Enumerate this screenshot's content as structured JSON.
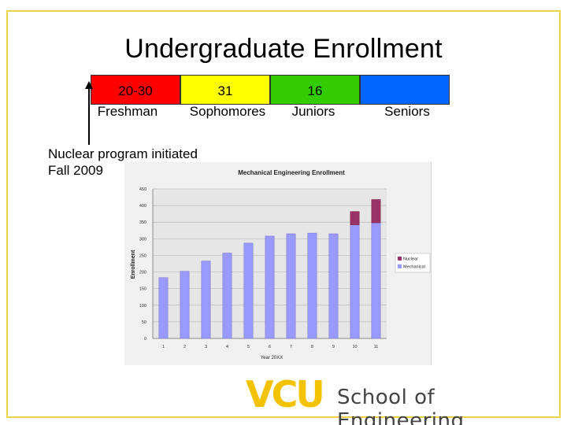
{
  "slide": {
    "title": "Undergraduate Enrollment",
    "note": [
      "Nuclear program initiated",
      "Fall 2009"
    ]
  },
  "class_bar": [
    {
      "value": "20-30",
      "label": "Freshman",
      "color": "#ff0000"
    },
    {
      "value": "31",
      "label": "Sophomores",
      "color": "#ffff00"
    },
    {
      "value": "16",
      "label": "Juniors",
      "color": "#33cc00"
    },
    {
      "value": "",
      "label": "Seniors",
      "color": "#0066ff"
    }
  ],
  "logo": {
    "brand": "VCU",
    "school": "School of Engineering",
    "brand_color": "#f3c200"
  },
  "chart_data": {
    "type": "bar",
    "stacked": true,
    "title": "Mechanical Engineering Enrollment",
    "xlabel": "Year 20XX",
    "ylabel": "Enrollment",
    "categories": [
      "1",
      "2",
      "3",
      "4",
      "5",
      "6",
      "7",
      "8",
      "9",
      "10",
      "11"
    ],
    "ylim": [
      0,
      450
    ],
    "yticks": [
      0,
      50,
      100,
      150,
      200,
      250,
      300,
      350,
      400,
      450
    ],
    "grid": true,
    "legend": "right",
    "series": [
      {
        "name": "Mechanical",
        "color": "#9999ff",
        "values": [
          183,
          202,
          233,
          257,
          287,
          308,
          315,
          317,
          315,
          342,
          348
        ]
      },
      {
        "name": "Nuclear",
        "color": "#993366",
        "values": [
          0,
          0,
          0,
          0,
          0,
          0,
          0,
          0,
          0,
          40,
          70
        ]
      }
    ]
  }
}
